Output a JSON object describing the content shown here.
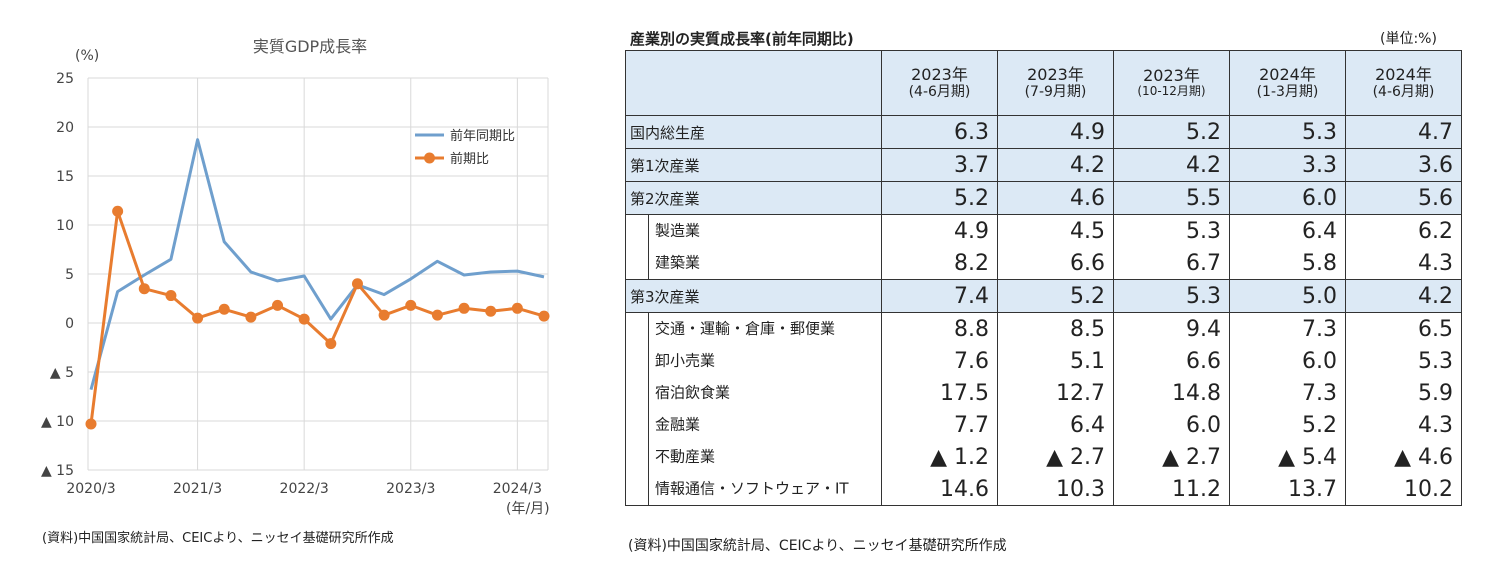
{
  "chart_data": {
    "type": "line",
    "title": "実質GDP成長率",
    "ylabel": "(%)",
    "xlabel": "(年/月)",
    "ylim": [
      -15,
      25
    ],
    "yticks": [
      25,
      20,
      15,
      10,
      5,
      0,
      -5,
      -10,
      -15
    ],
    "ytick_labels": [
      "25",
      "20",
      "15",
      "10",
      "5",
      "0",
      "▲ 5",
      "▲ 10",
      "▲ 15"
    ],
    "x": [
      "2020/3",
      "2020/6",
      "2020/9",
      "2020/12",
      "2021/3",
      "2021/6",
      "2021/9",
      "2021/12",
      "2022/3",
      "2022/6",
      "2022/9",
      "2022/12",
      "2023/3",
      "2023/6",
      "2023/9",
      "2023/12",
      "2024/3",
      "2024/6"
    ],
    "xtick_labels": [
      "2020/3",
      "2021/3",
      "2022/3",
      "2023/3",
      "2024/3"
    ],
    "grid": true,
    "legend_position": "top-right",
    "series": [
      {
        "name": "前年同期比",
        "color": "#6f9fcd",
        "marker": false,
        "values": [
          -6.8,
          3.2,
          4.9,
          6.5,
          18.7,
          8.3,
          5.2,
          4.3,
          4.8,
          0.4,
          3.9,
          2.9,
          4.5,
          6.3,
          4.9,
          5.2,
          5.3,
          4.7
        ]
      },
      {
        "name": "前期比",
        "color": "#e87c2f",
        "marker": true,
        "values": [
          -10.3,
          11.4,
          3.5,
          2.8,
          0.5,
          1.4,
          0.6,
          1.8,
          0.4,
          -2.1,
          4.0,
          0.8,
          1.8,
          0.8,
          1.5,
          1.2,
          1.5,
          0.7
        ]
      }
    ]
  },
  "chart_source": "(資料)中国国家統計局、CEICより、ニッセイ基礎研究所作成",
  "table": {
    "title": "産業別の実質成長率(前年同期比)",
    "unit": "(単位:%)",
    "columns": [
      {
        "year": "2023年",
        "period": "(4-6月期)"
      },
      {
        "year": "2023年",
        "period": "(7-9月期)"
      },
      {
        "year": "2023年",
        "period": "(10-12月期)"
      },
      {
        "year": "2024年",
        "period": "(1-3月期)"
      },
      {
        "year": "2024年",
        "period": "(4-6月期)"
      }
    ],
    "rows": [
      {
        "label": "国内総生産",
        "level": "main",
        "values": [
          "6.3",
          "4.9",
          "5.2",
          "5.3",
          "4.7"
        ]
      },
      {
        "label": "第1次産業",
        "level": "main",
        "values": [
          "3.7",
          "4.2",
          "4.2",
          "3.3",
          "3.6"
        ]
      },
      {
        "label": "第2次産業",
        "level": "main",
        "values": [
          "5.2",
          "4.6",
          "5.5",
          "6.0",
          "5.6"
        ]
      },
      {
        "label": "製造業",
        "level": "sub",
        "values": [
          "4.9",
          "4.5",
          "5.3",
          "6.4",
          "6.2"
        ]
      },
      {
        "label": "建築業",
        "level": "sub",
        "values": [
          "8.2",
          "6.6",
          "6.7",
          "5.8",
          "4.3"
        ]
      },
      {
        "label": "第3次産業",
        "level": "main",
        "values": [
          "7.4",
          "5.2",
          "5.3",
          "5.0",
          "4.2"
        ]
      },
      {
        "label": "交通・運輸・倉庫・郵便業",
        "level": "sub",
        "values": [
          "8.8",
          "8.5",
          "9.4",
          "7.3",
          "6.5"
        ]
      },
      {
        "label": "卸小売業",
        "level": "sub",
        "values": [
          "7.6",
          "5.1",
          "6.6",
          "6.0",
          "5.3"
        ]
      },
      {
        "label": "宿泊飲食業",
        "level": "sub",
        "values": [
          "17.5",
          "12.7",
          "14.8",
          "7.3",
          "5.9"
        ]
      },
      {
        "label": "金融業",
        "level": "sub",
        "values": [
          "7.7",
          "6.4",
          "6.0",
          "5.2",
          "4.3"
        ]
      },
      {
        "label": "不動産業",
        "level": "sub",
        "values": [
          "▲ 1.2",
          "▲ 2.7",
          "▲ 2.7",
          "▲ 5.4",
          "▲ 4.6"
        ]
      },
      {
        "label": "情報通信・ソフトウェア・IT",
        "level": "sub",
        "values": [
          "14.6",
          "10.3",
          "11.2",
          "13.7",
          "10.2"
        ]
      }
    ],
    "source": "(資料)中国国家統計局、CEICより、ニッセイ基礎研究所作成"
  }
}
